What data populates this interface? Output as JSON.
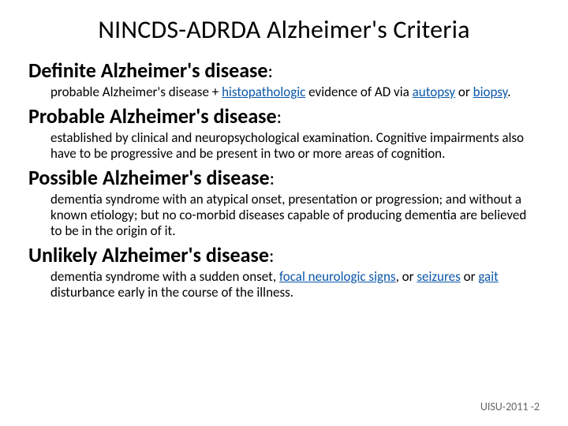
{
  "colors": {
    "background": "#ffffff",
    "text": "#000000",
    "link": "#0b57a8",
    "footer": "#666666"
  },
  "typography": {
    "title_fontsize": 32,
    "heading_fontsize": 26,
    "body_fontsize": 17,
    "footer_fontsize": 14,
    "font_family": "Calibri"
  },
  "title": "NINCDS-ADRDA Alzheimer's Criteria",
  "sections": [
    {
      "heading": "Definite Alzheimer's disease",
      "body_parts": [
        {
          "t": "probable Alzheimer's disease + "
        },
        {
          "t": "histopathologic",
          "link": true
        },
        {
          "t": " evidence of AD via "
        },
        {
          "t": "autopsy",
          "link": true
        },
        {
          "t": " or "
        },
        {
          "t": "biopsy",
          "link": true
        },
        {
          "t": "."
        }
      ]
    },
    {
      "heading": "Probable Alzheimer's disease",
      "body_parts": [
        {
          "t": "established by clinical and neuropsychological examination. Cognitive impairments also have to be progressive and be present in two or more areas of cognition."
        }
      ]
    },
    {
      "heading": "Possible Alzheimer's disease",
      "body_parts": [
        {
          "t": "dementia syndrome with an atypical onset, presentation or progression; and without a known etiology; but no co-morbid diseases capable of producing dementia are believed to be in the origin of it."
        }
      ]
    },
    {
      "heading": "Unlikely Alzheimer's disease",
      "body_parts": [
        {
          "t": "dementia syndrome with a sudden onset, "
        },
        {
          "t": "focal neurologic signs",
          "link": true
        },
        {
          "t": ", or "
        },
        {
          "t": "seizures",
          "link": true
        },
        {
          "t": " or "
        },
        {
          "t": "gait",
          "link": true
        },
        {
          "t": " disturbance early in the course of the illness."
        }
      ]
    }
  ],
  "footer": "UISU-2011 -2"
}
